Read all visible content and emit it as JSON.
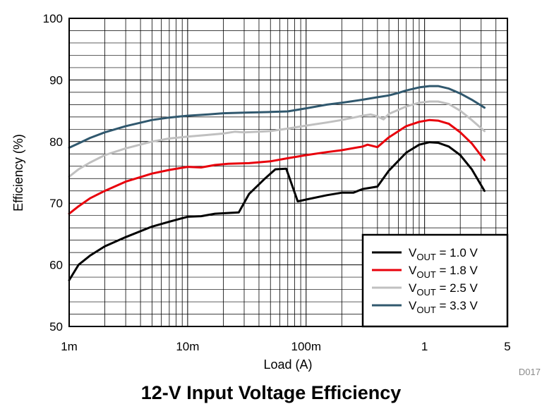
{
  "figure_code": "D017",
  "chart_data": {
    "type": "line",
    "title": "12-V Input Voltage Efficiency",
    "xlabel": "Load (A)",
    "ylabel": "Efficiency (%)",
    "x_scale": "log",
    "xlim": [
      0.001,
      5
    ],
    "ylim": [
      50,
      100
    ],
    "x_ticks": [
      0.001,
      0.01,
      0.1,
      1,
      5
    ],
    "x_tick_labels": [
      "1m",
      "10m",
      "100m",
      "1",
      "5"
    ],
    "y_ticks": [
      50,
      60,
      70,
      80,
      90,
      100
    ],
    "y_tick_labels": [
      "50",
      "60",
      "70",
      "80",
      "90",
      "100"
    ],
    "grid": true,
    "legend_position": "bottom-right",
    "series": [
      {
        "name": "VOUT = 1.0 V",
        "legend": {
          "prefix": "V",
          "sub": "OUT",
          "suffix": " = 1.0 V"
        },
        "color": "#000000",
        "points": [
          [
            0.001,
            57.5
          ],
          [
            0.0012,
            60
          ],
          [
            0.0015,
            61.5
          ],
          [
            0.002,
            63
          ],
          [
            0.003,
            64.5
          ],
          [
            0.005,
            66.2
          ],
          [
            0.007,
            67
          ],
          [
            0.01,
            67.8
          ],
          [
            0.013,
            67.9
          ],
          [
            0.017,
            68.3
          ],
          [
            0.027,
            68.5
          ],
          [
            0.033,
            71.5
          ],
          [
            0.045,
            74
          ],
          [
            0.055,
            75.5
          ],
          [
            0.068,
            75.6
          ],
          [
            0.085,
            70.3
          ],
          [
            0.1,
            70.6
          ],
          [
            0.15,
            71.3
          ],
          [
            0.2,
            71.7
          ],
          [
            0.25,
            71.7
          ],
          [
            0.3,
            72.3
          ],
          [
            0.4,
            72.7
          ],
          [
            0.5,
            75.3
          ],
          [
            0.7,
            78.2
          ],
          [
            0.9,
            79.5
          ],
          [
            1.1,
            79.9
          ],
          [
            1.3,
            79.8
          ],
          [
            1.6,
            79.2
          ],
          [
            2.0,
            77.8
          ],
          [
            2.5,
            75.5
          ],
          [
            3.2,
            72
          ]
        ]
      },
      {
        "name": "VOUT = 1.8 V",
        "legend": {
          "prefix": "V",
          "sub": "OUT",
          "suffix": " = 1.8 V"
        },
        "color": "#e8000b",
        "points": [
          [
            0.001,
            68.3
          ],
          [
            0.0012,
            69.5
          ],
          [
            0.0015,
            70.8
          ],
          [
            0.002,
            72
          ],
          [
            0.003,
            73.5
          ],
          [
            0.005,
            74.8
          ],
          [
            0.007,
            75.4
          ],
          [
            0.01,
            75.9
          ],
          [
            0.013,
            75.8
          ],
          [
            0.017,
            76.2
          ],
          [
            0.022,
            76.4
          ],
          [
            0.033,
            76.5
          ],
          [
            0.05,
            76.8
          ],
          [
            0.07,
            77.3
          ],
          [
            0.1,
            77.8
          ],
          [
            0.15,
            78.3
          ],
          [
            0.2,
            78.6
          ],
          [
            0.3,
            79.2
          ],
          [
            0.33,
            79.5
          ],
          [
            0.4,
            79.1
          ],
          [
            0.5,
            80.7
          ],
          [
            0.7,
            82.5
          ],
          [
            0.9,
            83.2
          ],
          [
            1.1,
            83.5
          ],
          [
            1.3,
            83.4
          ],
          [
            1.6,
            82.9
          ],
          [
            2.0,
            81.5
          ],
          [
            2.5,
            79.7
          ],
          [
            3.2,
            77
          ]
        ]
      },
      {
        "name": "VOUT = 2.5 V",
        "legend": {
          "prefix": "V",
          "sub": "OUT",
          "suffix": " = 2.5 V"
        },
        "color": "#c0c0c0",
        "points": [
          [
            0.001,
            74.3
          ],
          [
            0.0012,
            75.5
          ],
          [
            0.0015,
            76.6
          ],
          [
            0.002,
            77.8
          ],
          [
            0.003,
            78.9
          ],
          [
            0.005,
            80
          ],
          [
            0.007,
            80.5
          ],
          [
            0.01,
            80.8
          ],
          [
            0.015,
            81.1
          ],
          [
            0.02,
            81.3
          ],
          [
            0.025,
            81.6
          ],
          [
            0.03,
            81.5
          ],
          [
            0.04,
            81.6
          ],
          [
            0.05,
            81.7
          ],
          [
            0.07,
            82.1
          ],
          [
            0.1,
            82.6
          ],
          [
            0.15,
            83.1
          ],
          [
            0.2,
            83.5
          ],
          [
            0.3,
            84.2
          ],
          [
            0.35,
            84.4
          ],
          [
            0.4,
            84.1
          ],
          [
            0.45,
            83.6
          ],
          [
            0.5,
            84.5
          ],
          [
            0.7,
            85.7
          ],
          [
            0.9,
            86.3
          ],
          [
            1.1,
            86.5
          ],
          [
            1.3,
            86.5
          ],
          [
            1.6,
            86.1
          ],
          [
            2.0,
            85.0
          ],
          [
            2.5,
            83.5
          ],
          [
            3.2,
            81.7
          ]
        ]
      },
      {
        "name": "VOUT = 3.3 V",
        "legend": {
          "prefix": "V",
          "sub": "OUT",
          "suffix": " = 3.3 V"
        },
        "color": "#30586e",
        "points": [
          [
            0.001,
            79
          ],
          [
            0.0012,
            79.7
          ],
          [
            0.0015,
            80.6
          ],
          [
            0.002,
            81.5
          ],
          [
            0.003,
            82.5
          ],
          [
            0.005,
            83.5
          ],
          [
            0.007,
            83.9
          ],
          [
            0.01,
            84.2
          ],
          [
            0.015,
            84.4
          ],
          [
            0.02,
            84.6
          ],
          [
            0.03,
            84.7
          ],
          [
            0.05,
            84.8
          ],
          [
            0.07,
            84.9
          ],
          [
            0.1,
            85.4
          ],
          [
            0.15,
            86
          ],
          [
            0.2,
            86.3
          ],
          [
            0.3,
            86.8
          ],
          [
            0.4,
            87.2
          ],
          [
            0.5,
            87.5
          ],
          [
            0.6,
            87.9
          ],
          [
            0.7,
            88.3
          ],
          [
            0.9,
            88.8
          ],
          [
            1.1,
            89.0
          ],
          [
            1.3,
            89.0
          ],
          [
            1.6,
            88.6
          ],
          [
            2.0,
            87.8
          ],
          [
            2.5,
            86.8
          ],
          [
            3.2,
            85.5
          ]
        ]
      }
    ]
  }
}
